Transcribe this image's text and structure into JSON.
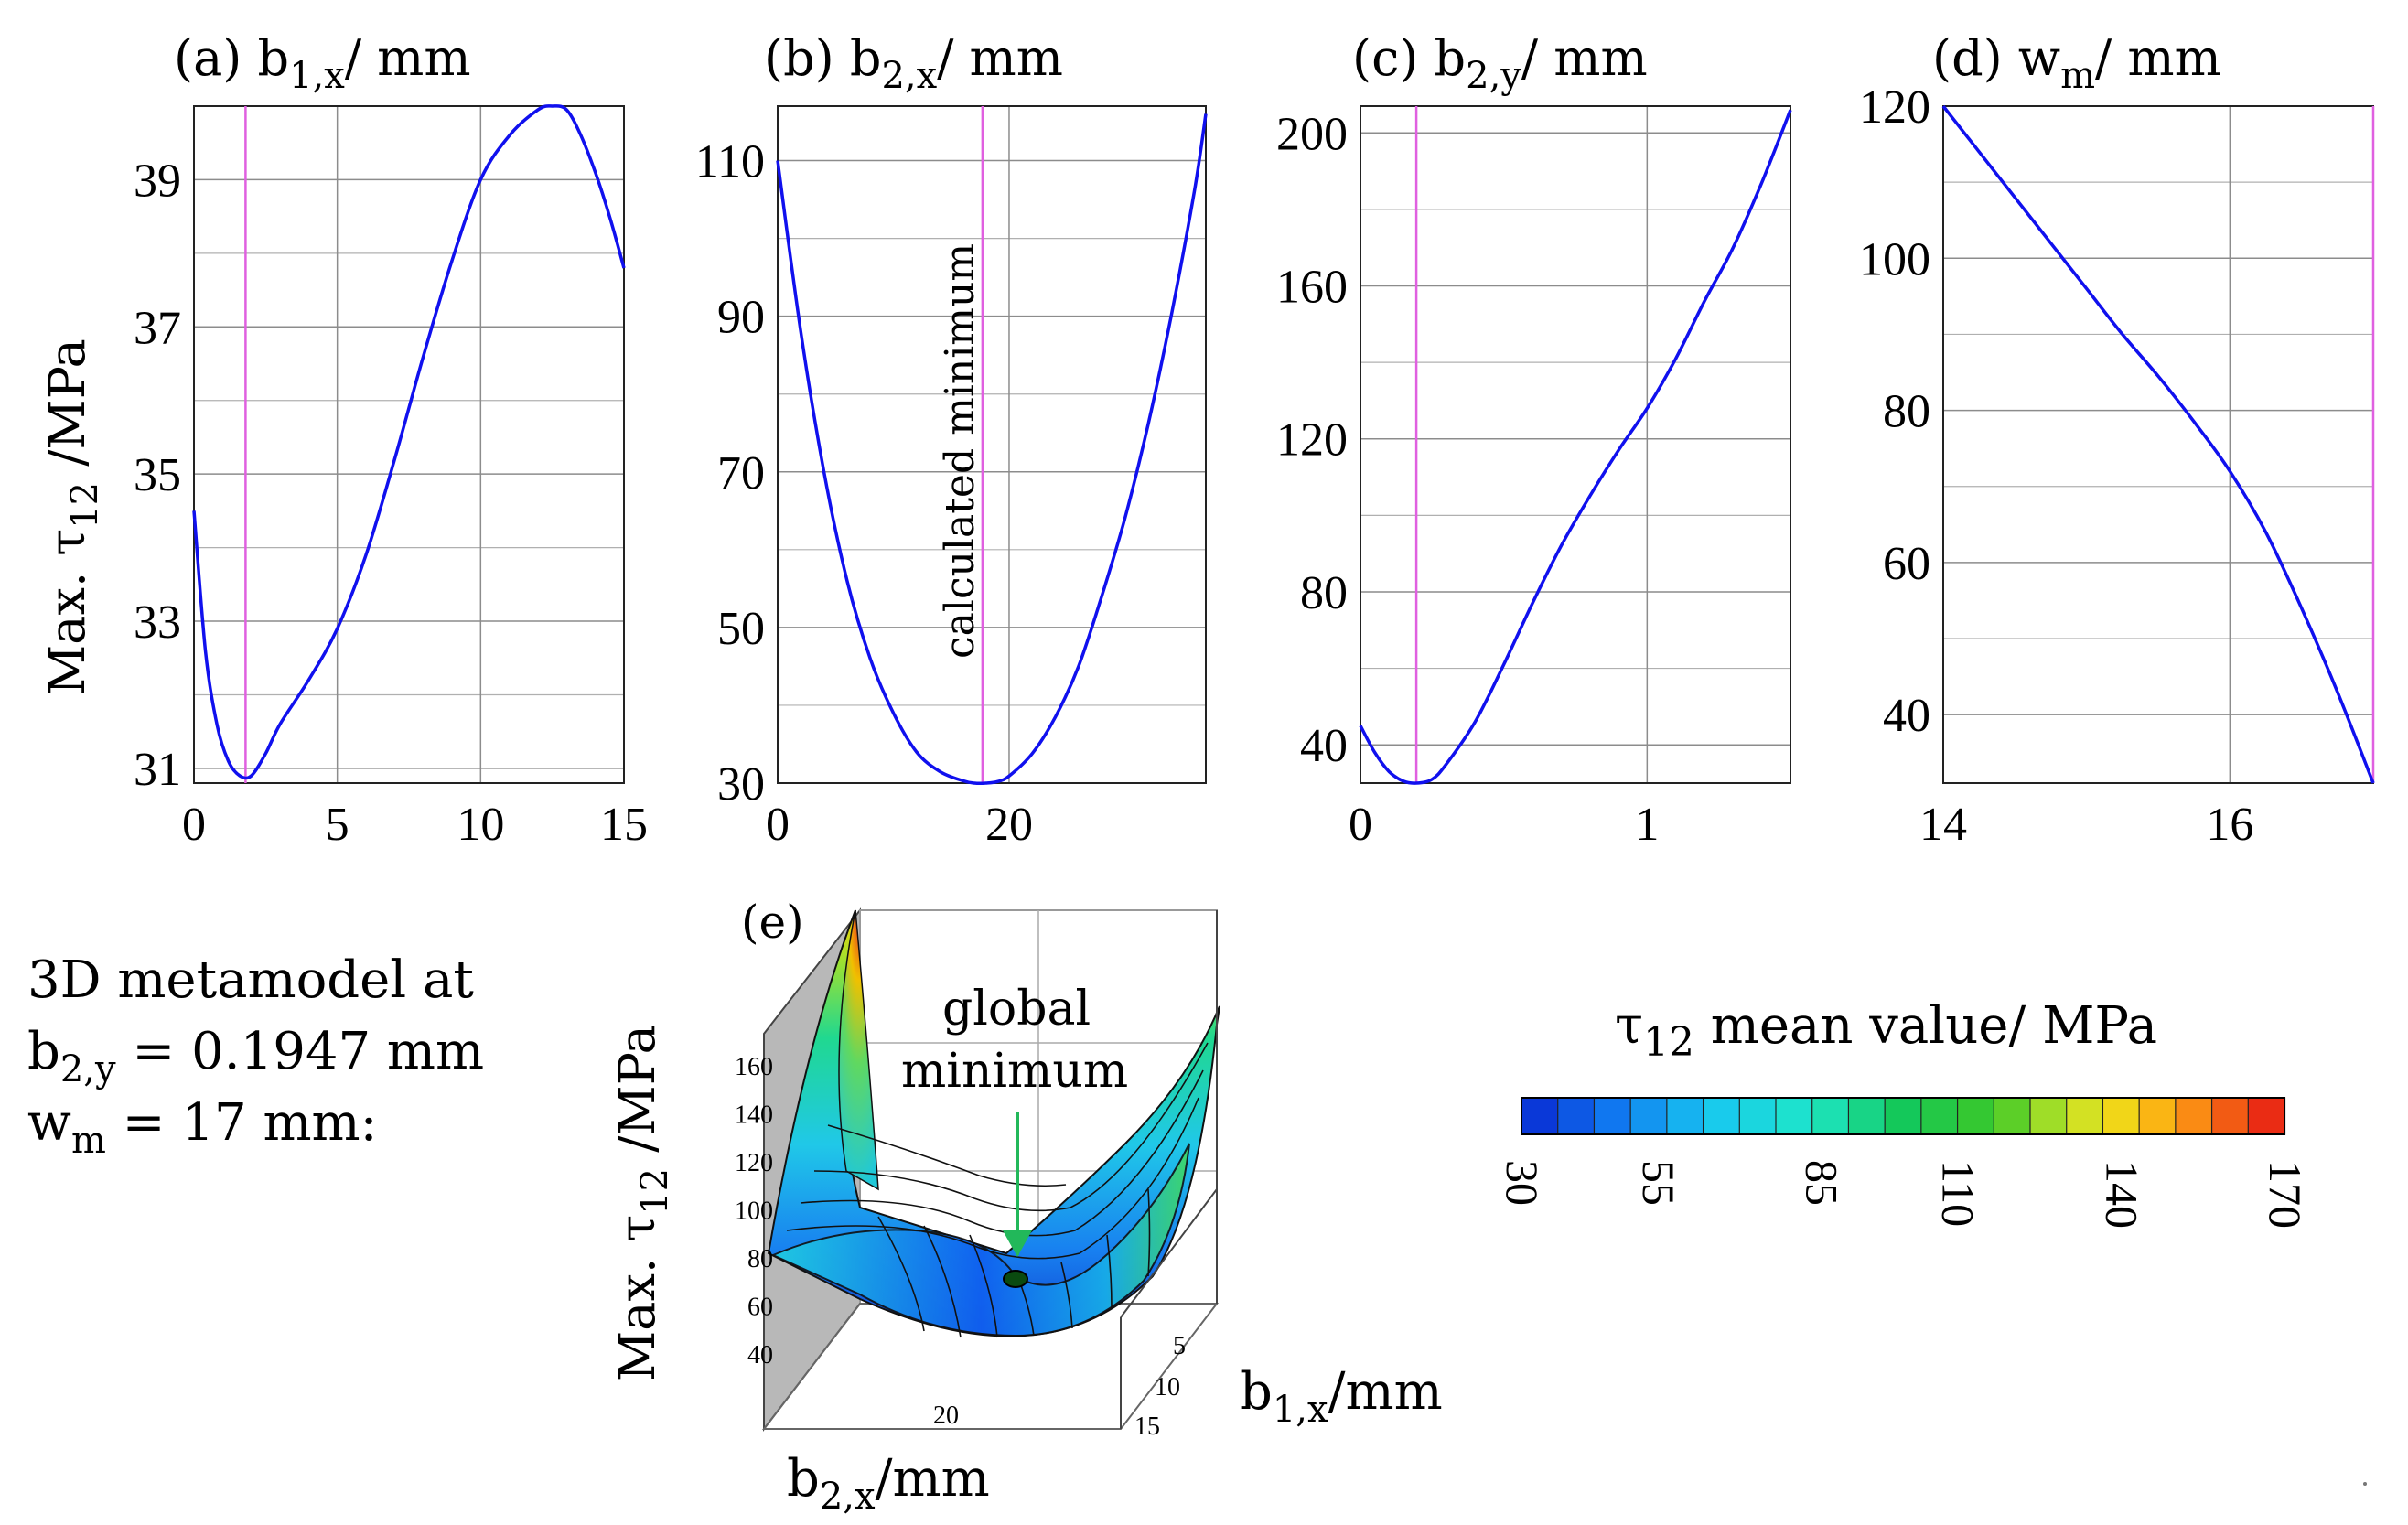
{
  "colors": {
    "curve": "#1010ee",
    "marker": "#e060e0",
    "grid": "#8c8c8c",
    "axis": "#000000",
    "arrow": "#22b85a"
  },
  "ylabel": {
    "prefix": "Max. τ",
    "sub": "12",
    "suffix": " /MPa"
  },
  "chart_data": [
    {
      "type": "line",
      "panel": "(a)",
      "title_main": "b",
      "title_sub": "1,x",
      "title_unit": "/ mm",
      "xlim": [
        0,
        15
      ],
      "ylim": [
        30.8,
        40
      ],
      "xticks": [
        0,
        5,
        10,
        15
      ],
      "yticks": [
        31,
        33,
        35,
        37,
        39
      ],
      "marker_x": 1.8,
      "x": [
        0,
        0.4,
        0.8,
        1.2,
        1.6,
        2.0,
        2.5,
        3,
        4,
        5,
        6,
        7,
        8,
        9,
        10,
        11,
        12,
        12.5,
        13,
        13.5,
        14,
        14.5,
        15
      ],
      "y": [
        34.5,
        32.6,
        31.6,
        31.1,
        30.9,
        30.9,
        31.2,
        31.6,
        32.2,
        32.9,
        33.9,
        35.2,
        36.6,
        37.9,
        39.0,
        39.6,
        39.95,
        40.0,
        39.95,
        39.6,
        39.1,
        38.5,
        37.8
      ]
    },
    {
      "type": "line",
      "panel": "(b)",
      "title_main": "b",
      "title_sub": "2,x",
      "title_unit": "/ mm",
      "xlim": [
        0,
        37
      ],
      "ylim": [
        30,
        117
      ],
      "xticks": [
        0,
        20
      ],
      "yticks": [
        30,
        50,
        70,
        90,
        110
      ],
      "marker_x": 17.7,
      "annotation": "calculated minimum",
      "x": [
        0,
        2,
        4,
        6,
        8,
        10,
        12,
        14,
        16,
        17,
        18,
        19,
        20,
        22,
        24,
        26,
        28,
        30,
        32,
        34,
        36,
        37
      ],
      "y": [
        110,
        88,
        70,
        56,
        46,
        39,
        34,
        31.5,
        30.3,
        30.0,
        30.0,
        30.2,
        30.9,
        33.8,
        38.5,
        45,
        54,
        64,
        76,
        90,
        106,
        116
      ]
    },
    {
      "type": "line",
      "panel": "(c)",
      "title_main": "b",
      "title_sub": "2,y",
      "title_unit": "/ mm",
      "xlim": [
        0,
        1.5
      ],
      "ylim": [
        30,
        207
      ],
      "xticks": [
        0,
        1
      ],
      "yticks": [
        40,
        80,
        120,
        160,
        200
      ],
      "marker_x": 0.195,
      "x": [
        0,
        0.05,
        0.1,
        0.15,
        0.195,
        0.25,
        0.3,
        0.4,
        0.5,
        0.6,
        0.7,
        0.8,
        0.9,
        1.0,
        1.1,
        1.2,
        1.3,
        1.4,
        1.5
      ],
      "y": [
        45,
        38,
        33,
        30.5,
        30,
        31,
        35,
        46,
        61,
        77,
        92,
        105,
        117,
        128,
        141,
        156,
        170,
        187,
        206
      ]
    },
    {
      "type": "line",
      "panel": "(d)",
      "title_main": "w",
      "title_sub": "m",
      "title_unit": "/ mm",
      "xlim": [
        14,
        17
      ],
      "ylim": [
        31,
        120
      ],
      "xticks": [
        14,
        16
      ],
      "yticks": [
        40,
        60,
        80,
        100,
        120
      ],
      "marker_x": 17,
      "x": [
        14,
        14.25,
        14.5,
        14.75,
        15,
        15.25,
        15.5,
        15.75,
        16,
        16.25,
        16.5,
        16.75,
        17
      ],
      "y": [
        120,
        114,
        108,
        102,
        96,
        90,
        84.5,
        78.5,
        72,
        64,
        54,
        43,
        31
      ]
    },
    {
      "type": "surface3d",
      "panel": "(e)",
      "zticks": [
        40,
        60,
        80,
        100,
        120,
        140,
        160
      ],
      "xaxis_label_main": "b",
      "xaxis_label_sub": "2,x",
      "xaxis_label_unit": "/mm",
      "xaxis_tick": "20",
      "yaxis_label_main": "b",
      "yaxis_label_sub": "1,x",
      "yaxis_label_unit": "/mm",
      "yaxis_ticks": [
        "5",
        "10",
        "15"
      ],
      "annotation_line1": "global",
      "annotation_line2": "minimum"
    },
    {
      "type": "colorbar",
      "title_main": "τ",
      "title_sub": "12",
      "title_rest": "  mean value/ MPa",
      "ticks": [
        30,
        55,
        85,
        110,
        140,
        170
      ],
      "range": [
        30,
        170
      ]
    }
  ],
  "info": {
    "line1": "3D metamodel at",
    "line2_main": "b",
    "line2_sub": "2,y",
    "line2_rest": " = 0.1947 mm",
    "line3_main": "w",
    "line3_sub": "m",
    "line3_rest": " = 17 mm:"
  }
}
